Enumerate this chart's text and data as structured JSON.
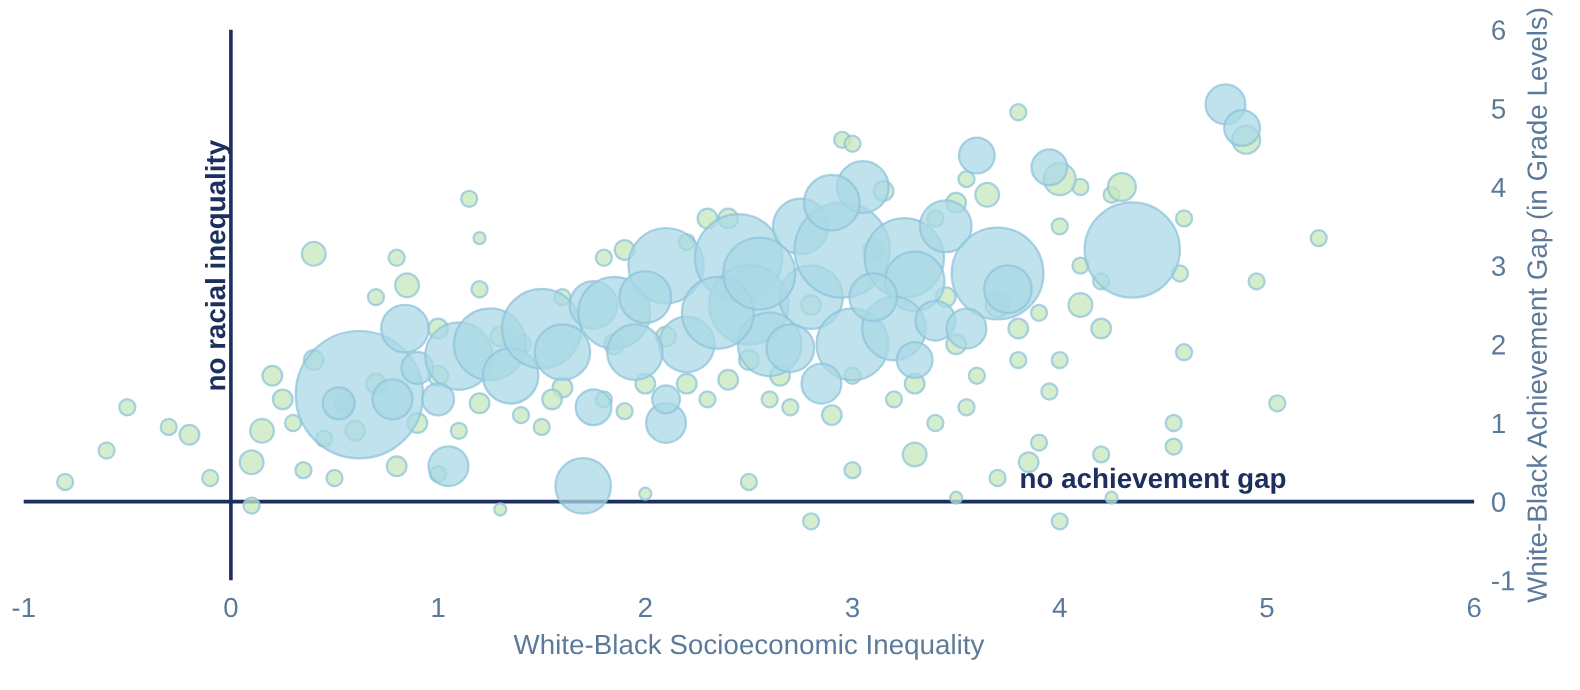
{
  "chart_data": {
    "type": "bubble",
    "xlabel": "White-Black Socioeconomic Inequality",
    "ylabel": "White-Black Achievement Gap (in Grade Levels)",
    "xlim": [
      -1,
      6
    ],
    "xticks": [
      {
        "value": -1,
        "label": "-1"
      },
      0,
      1,
      2,
      3,
      4,
      5,
      6
    ],
    "ylim": [
      -1,
      6
    ],
    "yticks": [
      {
        "value": -1,
        "label": "-1"
      },
      0,
      1,
      2,
      3,
      4,
      5,
      6
    ],
    "grid": false,
    "legend": false,
    "ref_lines": [
      {
        "axis": "x",
        "value": 0,
        "label": "no racial inequality",
        "color": "#1c2f5e"
      },
      {
        "axis": "y",
        "value": 0,
        "label": "no achievement gap",
        "color": "#1c2f5e"
      }
    ],
    "series": [
      {
        "color": "#c6e8bc",
        "x": [
          -0.8,
          -0.6,
          -0.5,
          -0.3,
          -0.2,
          -0.1,
          0.1,
          0.1,
          0.4,
          0.7,
          0.85,
          0.8,
          1.15,
          1.2,
          1.0,
          1.2,
          1.3,
          1.6,
          1.8,
          1.9,
          2.2,
          2.4,
          2.8,
          2.95,
          3.0,
          3.1,
          3.15,
          3.4,
          3.5,
          3.55,
          3.65,
          4.0,
          3.8,
          4.1,
          4.25,
          4.3,
          4.0,
          4.6,
          4.58,
          4.9,
          4.95,
          5.25,
          4.6,
          5.05,
          4.55,
          4.55,
          4.2,
          4.25,
          4.0,
          3.5,
          3.7,
          3.85,
          3.9,
          3.95,
          4.0,
          3.55,
          3.3,
          3.0,
          2.8,
          2.5,
          2.0,
          1.3,
          1.0,
          0.8,
          0.35,
          0.5,
          0.2,
          0.3,
          0.45,
          0.9,
          1.1,
          1.2,
          1.4,
          1.5,
          1.6,
          1.8,
          1.9,
          2.2,
          2.3,
          2.4,
          2.6,
          2.7,
          2.9,
          3.0,
          3.2,
          3.3,
          3.4,
          3.6,
          3.8,
          3.8,
          3.9,
          4.1,
          4.2,
          4.1,
          4.2,
          0.25,
          0.4,
          0.6,
          0.7,
          1.0,
          1.4,
          1.55,
          2.0,
          2.5,
          2.65,
          3.5,
          3.7,
          3.45,
          2.3,
          2.1,
          1.85,
          0.15,
          0.55
        ],
        "values": [
          0.25,
          0.65,
          1.2,
          0.95,
          0.85,
          0.3,
          0.5,
          -0.05,
          3.15,
          2.6,
          2.75,
          3.1,
          3.85,
          3.35,
          1.6,
          2.7,
          2.1,
          2.6,
          3.1,
          3.2,
          3.3,
          3.6,
          2.5,
          4.6,
          4.55,
          3.2,
          3.95,
          3.6,
          3.8,
          4.1,
          3.9,
          3.5,
          4.95,
          4.0,
          3.9,
          4.0,
          4.1,
          3.6,
          2.9,
          4.6,
          2.8,
          3.35,
          1.9,
          1.25,
          1.0,
          0.7,
          0.6,
          0.05,
          -0.25,
          0.05,
          0.3,
          0.5,
          0.75,
          1.4,
          1.8,
          1.2,
          0.6,
          0.4,
          -0.25,
          0.25,
          0.1,
          -0.1,
          0.35,
          0.45,
          0.4,
          0.3,
          1.6,
          1.0,
          0.8,
          1.0,
          0.9,
          1.25,
          1.1,
          0.95,
          1.45,
          1.3,
          1.15,
          1.5,
          1.3,
          1.55,
          1.3,
          1.2,
          1.1,
          1.6,
          1.3,
          1.5,
          1.0,
          1.6,
          1.8,
          2.2,
          2.4,
          2.5,
          2.8,
          3.0,
          2.2,
          1.3,
          1.8,
          0.9,
          1.5,
          2.2,
          2.0,
          1.3,
          1.5,
          1.8,
          1.6,
          2.0,
          2.5,
          2.6,
          3.6,
          2.1,
          2.0,
          0.9,
          1.25
        ],
        "sizes": [
          0.016,
          0.016,
          0.016,
          0.016,
          0.024,
          0.016,
          0.035,
          0.016,
          0.035,
          0.016,
          0.035,
          0.016,
          0.016,
          0.009,
          0.024,
          0.016,
          0.024,
          0.016,
          0.016,
          0.024,
          0.016,
          0.024,
          0.024,
          0.016,
          0.016,
          0.024,
          0.024,
          0.016,
          0.024,
          0.016,
          0.035,
          0.016,
          0.016,
          0.016,
          0.016,
          0.048,
          0.063,
          0.016,
          0.016,
          0.048,
          0.016,
          0.016,
          0.016,
          0.016,
          0.016,
          0.016,
          0.016,
          0.009,
          0.016,
          0.009,
          0.016,
          0.024,
          0.016,
          0.016,
          0.016,
          0.016,
          0.035,
          0.016,
          0.016,
          0.016,
          0.009,
          0.009,
          0.016,
          0.024,
          0.016,
          0.016,
          0.024,
          0.016,
          0.016,
          0.024,
          0.016,
          0.024,
          0.016,
          0.016,
          0.024,
          0.016,
          0.016,
          0.024,
          0.016,
          0.024,
          0.016,
          0.016,
          0.024,
          0.016,
          0.016,
          0.024,
          0.016,
          0.016,
          0.016,
          0.024,
          0.016,
          0.035,
          0.016,
          0.016,
          0.024,
          0.024,
          0.024,
          0.024,
          0.024,
          0.024,
          0.024,
          0.024,
          0.024,
          0.024,
          0.024,
          0.024,
          0.035,
          0.024,
          0.024,
          0.024,
          0.024,
          0.035,
          0.024
        ]
      },
      {
        "color": "#aad8e6",
        "x": [
          0.62,
          0.52,
          0.78,
          0.84,
          0.9,
          1.05,
          1.7,
          1.1,
          1.25,
          1.35,
          1.5,
          1.6,
          1.75,
          1.85,
          1.75,
          2.1,
          2.1,
          2.1,
          2.0,
          2.2,
          2.45,
          2.5,
          2.6,
          2.75,
          2.8,
          2.95,
          3.0,
          3.05,
          2.9,
          2.85,
          3.25,
          3.3,
          3.45,
          3.2,
          3.4,
          3.7,
          3.75,
          3.55,
          3.3,
          3.6,
          3.95,
          4.35,
          4.8,
          4.88,
          2.35,
          1.95,
          3.1,
          2.7,
          1.0,
          2.55
        ],
        "values": [
          1.36,
          1.25,
          1.3,
          2.2,
          1.7,
          0.45,
          0.2,
          1.85,
          2.0,
          1.6,
          2.2,
          1.9,
          2.5,
          2.4,
          1.2,
          1.0,
          1.3,
          3.0,
          2.6,
          2.0,
          3.1,
          2.5,
          2.0,
          3.5,
          2.6,
          3.2,
          2.0,
          4.0,
          3.8,
          1.5,
          3.1,
          2.8,
          3.5,
          2.2,
          2.3,
          2.9,
          2.7,
          2.2,
          1.8,
          4.4,
          4.25,
          3.2,
          5.05,
          4.75,
          2.4,
          1.9,
          2.6,
          1.95,
          1.3,
          2.9
        ],
        "sizes": [
          1,
          0.063,
          0.098,
          0.14,
          0.063,
          0.098,
          0.19,
          0.28,
          0.32,
          0.19,
          0.39,
          0.19,
          0.14,
          0.32,
          0.079,
          0.098,
          0.048,
          0.35,
          0.165,
          0.19,
          0.47,
          0.39,
          0.25,
          0.19,
          0.25,
          0.56,
          0.32,
          0.165,
          0.19,
          0.098,
          0.39,
          0.22,
          0.165,
          0.25,
          0.098,
          0.52,
          0.14,
          0.098,
          0.079,
          0.079,
          0.079,
          0.56,
          0.098,
          0.079,
          0.32,
          0.19,
          0.14,
          0.14,
          0.063,
          0.32
        ]
      }
    ]
  }
}
